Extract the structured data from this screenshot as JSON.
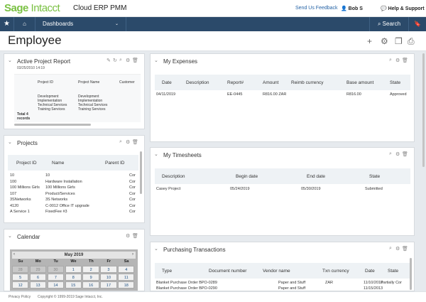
{
  "app": {
    "logo": "Sage",
    "logo_sub": "Intacct",
    "product": "Cloud ERP PMM",
    "feedback": "Send Us Feedback",
    "user": "Bob S",
    "help": "Help & Support"
  },
  "nav": {
    "dashboards": "Dashboards",
    "search": "Search"
  },
  "page": {
    "title": "Employee"
  },
  "active_report": {
    "title": "Active Project Report",
    "date": "03/25/2010 14:19",
    "headers": [
      "Project ID",
      "Project Name",
      "Customer"
    ],
    "names": [
      "Development",
      "Implementation",
      "Technical Services",
      "Training Services"
    ],
    "total": "Total 4 records"
  },
  "projects": {
    "title": "Projects",
    "headers": [
      "Project ID",
      "Name",
      "Parent ID"
    ],
    "rows": [
      [
        "10",
        "10",
        "Cor"
      ],
      [
        "100",
        "Hardware Installation",
        "Cor"
      ],
      [
        "100 Millions Girls",
        "100 Millions Girls",
        "Cor"
      ],
      [
        "107",
        "Product/Services",
        "Cor"
      ],
      [
        "3SNetworks",
        "3S Networks",
        "Cor"
      ],
      [
        "4120",
        "C-0012 Office IT upgrade",
        "Cor"
      ],
      [
        "A Service 1",
        "FixedFee #3",
        "Cor"
      ]
    ]
  },
  "calendar": {
    "title": "Calendar",
    "month": "May 2019",
    "days": [
      "Su",
      "Mo",
      "Tu",
      "We",
      "Th",
      "Fr",
      "Sa"
    ],
    "weeks": [
      [
        "28",
        "29",
        "30",
        "1",
        "2",
        "3",
        "4"
      ],
      [
        "5",
        "6",
        "7",
        "8",
        "9",
        "10",
        "11"
      ],
      [
        "12",
        "13",
        "14",
        "15",
        "16",
        "17",
        "18"
      ]
    ]
  },
  "expenses": {
    "title": "My Expenses",
    "headers": [
      "Date",
      "Description",
      "Report#",
      "Amount",
      "Reimb currency",
      "Base amount",
      "State"
    ],
    "rows": [
      [
        "04/11/2019",
        "",
        "EE-0445",
        "R816.00 ZAR",
        "",
        "R816.00",
        "Approved"
      ]
    ]
  },
  "timesheets": {
    "title": "My Timesheets",
    "headers": [
      "Description",
      "Begin date",
      "End date",
      "State"
    ],
    "rows": [
      [
        "Casey Project",
        "05/24/2019",
        "05/30/2019",
        "Submitted"
      ]
    ]
  },
  "purchasing": {
    "title": "Purchasing Transactions",
    "headers": [
      "Type",
      "Document number",
      "Vendor name",
      "Txn currency",
      "Date",
      "State"
    ],
    "rows": [
      [
        "Blanket Purchase Order BPO-0289",
        "",
        "Paper and Stuff",
        "ZAR",
        "11/10/2013",
        "Partially Cor"
      ],
      [
        "Blanket Purchase Order BPO-0290",
        "",
        "Paper and Stuff",
        "",
        "11/15/2013",
        ""
      ]
    ]
  },
  "footer": {
    "privacy": "Privacy Policy",
    "copyright": "Copyright © 1999-2019 Sage Intacct, Inc."
  }
}
